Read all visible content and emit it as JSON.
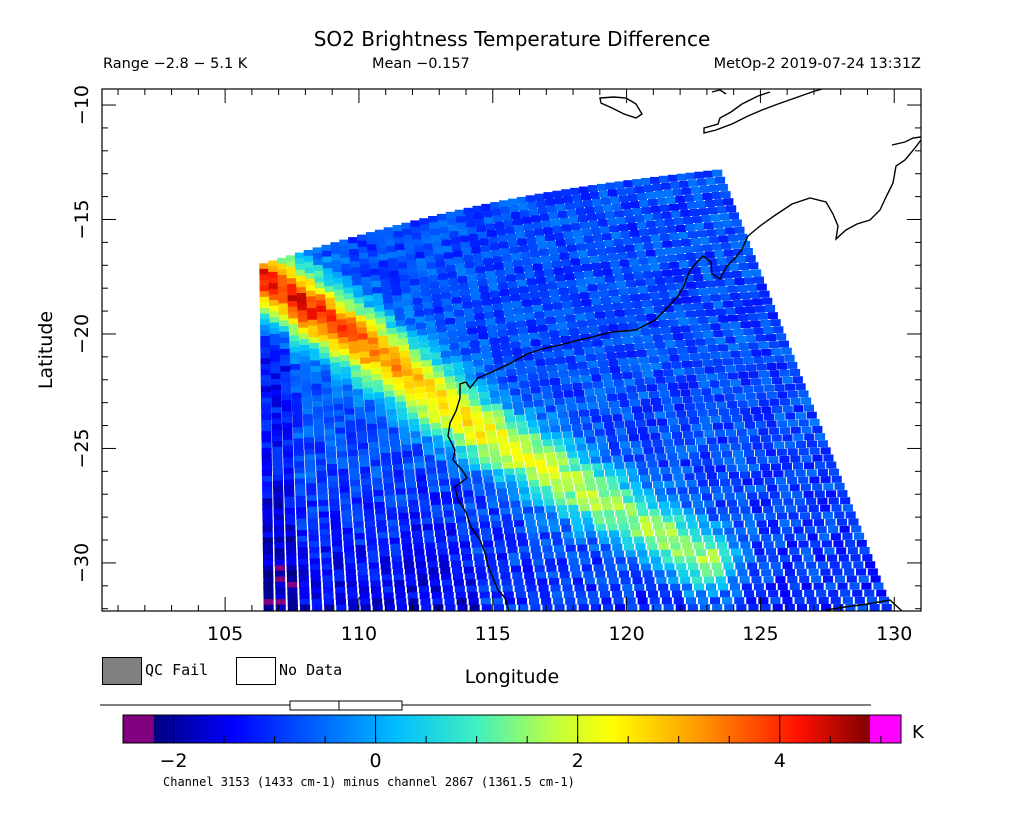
{
  "header": {
    "title": "SO2 Brightness Temperature Difference",
    "range": "Range −2.8 − 5.1 K",
    "mean": "Mean −0.157",
    "satellite_time": "MetOp-2 2019-07-24 13:31Z"
  },
  "legend": {
    "qc_fail_label": "QC Fail",
    "qc_fail_color": "#808080",
    "no_data_label": "No Data",
    "no_data_color": "#ffffff"
  },
  "colorbar": {
    "unit": "K",
    "range": [
      -2.5,
      5.2
    ],
    "ticks": [
      -2,
      0,
      2,
      4
    ],
    "tick_labels": [
      "−2",
      "0",
      "2",
      "4"
    ],
    "below_color": "#800080",
    "above_color": "#ff00ff",
    "footnote": "Channel 3153 (1433 cm-1) minus channel 2867 (1361.5 cm-1)"
  },
  "chart_data": {
    "type": "heatmap",
    "title": "SO2 Brightness Temperature Difference",
    "xlabel": "Longitude",
    "ylabel": "Latitude",
    "xlim": [
      100.4,
      131.0
    ],
    "ylim": [
      -32.1,
      -9.3
    ],
    "x_ticks": [
      105,
      110,
      115,
      120,
      125,
      130
    ],
    "x_tick_labels": [
      "105",
      "110",
      "115",
      "120",
      "125",
      "130"
    ],
    "y_ticks": [
      -10,
      -15,
      -20,
      -25,
      -30
    ],
    "y_tick_labels": [
      "−10",
      "−15",
      "−20",
      "−25",
      "−30"
    ],
    "data_range": [
      -2.8,
      5.1
    ],
    "mean": -0.157,
    "swath_corners_lonlat": [
      [
        104.5,
        -17.3
      ],
      [
        106.3,
        -17.0
      ],
      [
        123.5,
        -12.8
      ],
      [
        130.0,
        -32.1
      ],
      [
        106.6,
        -32.1
      ]
    ],
    "plume_axis_lonlat": [
      [
        106.3,
        -17.5
      ],
      [
        110.0,
        -20.3
      ],
      [
        114.0,
        -23.8
      ],
      [
        118.0,
        -26.6
      ],
      [
        121.0,
        -28.6
      ],
      [
        123.0,
        -29.9
      ]
    ],
    "plume_peak_value": 5.0,
    "background_value": -0.8,
    "grid": false
  }
}
